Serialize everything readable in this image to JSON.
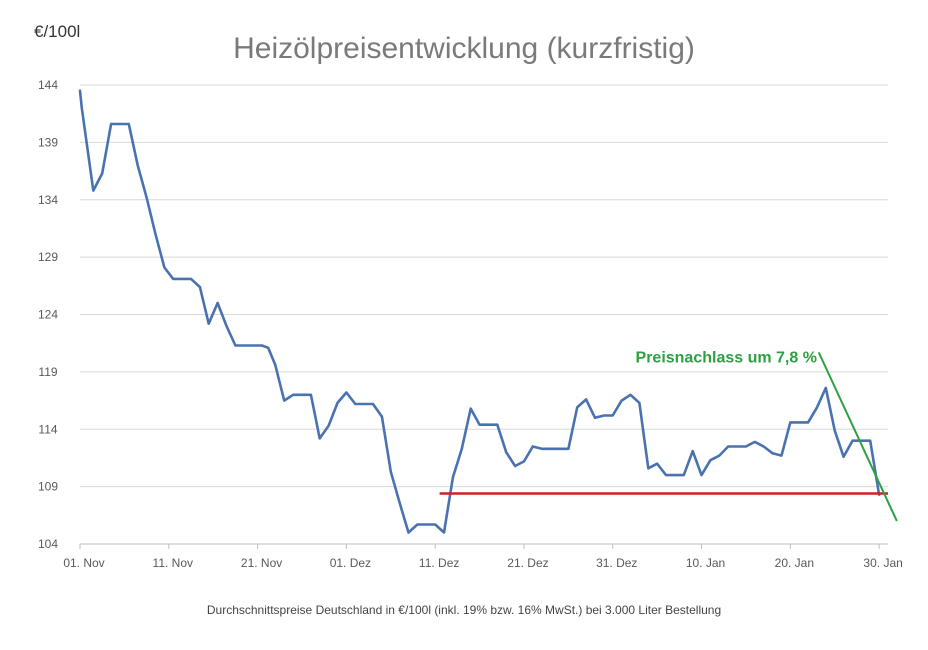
{
  "chart_data": {
    "type": "line",
    "title": "Heizölpreisentwicklung (kurzfristig)",
    "ylabel": "€/100l",
    "xlabel": "",
    "ylim": [
      104,
      144
    ],
    "yticks": [
      104,
      109,
      114,
      119,
      124,
      129,
      134,
      139,
      144
    ],
    "xlim": [
      0,
      91
    ],
    "xticks": [
      {
        "x": 0,
        "label": "01. Nov"
      },
      {
        "x": 10,
        "label": "11. Nov"
      },
      {
        "x": 20,
        "label": "21. Nov"
      },
      {
        "x": 30,
        "label": "01. Dez"
      },
      {
        "x": 40,
        "label": "11. Dez"
      },
      {
        "x": 50,
        "label": "21. Dez"
      },
      {
        "x": 60,
        "label": "31. Dez"
      },
      {
        "x": 70,
        "label": "10. Jan"
      },
      {
        "x": 80,
        "label": "20. Jan"
      },
      {
        "x": 90,
        "label": "30. Jan"
      }
    ],
    "grid": true,
    "series": [
      {
        "color": "#4a72b0",
        "points": [
          [
            0,
            143.5
          ],
          [
            0.2,
            142.0
          ],
          [
            1.5,
            134.8
          ],
          [
            2.5,
            136.3
          ],
          [
            3.5,
            140.6
          ],
          [
            5.5,
            140.6
          ],
          [
            6.5,
            137.0
          ],
          [
            7.5,
            134.2
          ],
          [
            8.5,
            131.0
          ],
          [
            9.5,
            128.1
          ],
          [
            10.5,
            127.1
          ],
          [
            12.5,
            127.1
          ],
          [
            13.5,
            126.4
          ],
          [
            14.5,
            123.2
          ],
          [
            15.5,
            125.0
          ],
          [
            16.5,
            123.0
          ],
          [
            17.5,
            121.3
          ],
          [
            20.5,
            121.3
          ],
          [
            21.2,
            121.1
          ],
          [
            22,
            119.6
          ],
          [
            23,
            116.5
          ],
          [
            24,
            117.0
          ],
          [
            26,
            117.0
          ],
          [
            27,
            113.2
          ],
          [
            28,
            114.3
          ],
          [
            29,
            116.3
          ],
          [
            30,
            117.2
          ],
          [
            31,
            116.2
          ],
          [
            33,
            116.2
          ],
          [
            34,
            115.1
          ],
          [
            35,
            110.3
          ],
          [
            36,
            107.6
          ],
          [
            37,
            105.0
          ],
          [
            38,
            105.7
          ],
          [
            40,
            105.7
          ],
          [
            41,
            105.0
          ],
          [
            42,
            109.8
          ],
          [
            43,
            112.3
          ],
          [
            44,
            115.8
          ],
          [
            45,
            114.4
          ],
          [
            47,
            114.4
          ],
          [
            48,
            112.0
          ],
          [
            49,
            110.8
          ],
          [
            50,
            111.2
          ],
          [
            51,
            112.5
          ],
          [
            52,
            112.3
          ],
          [
            55,
            112.3
          ],
          [
            56,
            115.9
          ],
          [
            57,
            116.6
          ],
          [
            58,
            115.0
          ],
          [
            59,
            115.2
          ],
          [
            60,
            115.2
          ],
          [
            61,
            116.5
          ],
          [
            62,
            117.0
          ],
          [
            63,
            116.3
          ],
          [
            64,
            110.6
          ],
          [
            65,
            111.0
          ],
          [
            66,
            110.0
          ],
          [
            68,
            110.0
          ],
          [
            69,
            112.1
          ],
          [
            70,
            110.0
          ],
          [
            71,
            111.3
          ],
          [
            72,
            111.7
          ],
          [
            73,
            112.5
          ],
          [
            75,
            112.5
          ],
          [
            76,
            112.9
          ],
          [
            77,
            112.5
          ],
          [
            78,
            111.9
          ],
          [
            79,
            111.7
          ],
          [
            80,
            114.6
          ],
          [
            82,
            114.6
          ],
          [
            83,
            115.9
          ],
          [
            84,
            117.6
          ],
          [
            85,
            113.9
          ],
          [
            86,
            111.6
          ],
          [
            87,
            113.0
          ],
          [
            89,
            113.0
          ],
          [
            90,
            108.3
          ]
        ]
      }
    ],
    "annotations": [
      {
        "type": "hline",
        "y": 108.4,
        "x_start": 40.5,
        "x_end": 91,
        "color": "#cc2222"
      },
      {
        "type": "trendline",
        "from": [
          83.2,
          120.7
        ],
        "to": [
          92,
          106.0
        ],
        "color": "#2ea043"
      },
      {
        "type": "text",
        "text": "Preisnachlass um 7,8 %",
        "at": [
          83,
          119.8
        ],
        "color": "#2ea043"
      }
    ],
    "footnote": "Durchschnittspreise Deutschland in €/100l (inkl. 19% bzw. 16%  MwSt.) bei 3.000 Liter Bestellung"
  }
}
